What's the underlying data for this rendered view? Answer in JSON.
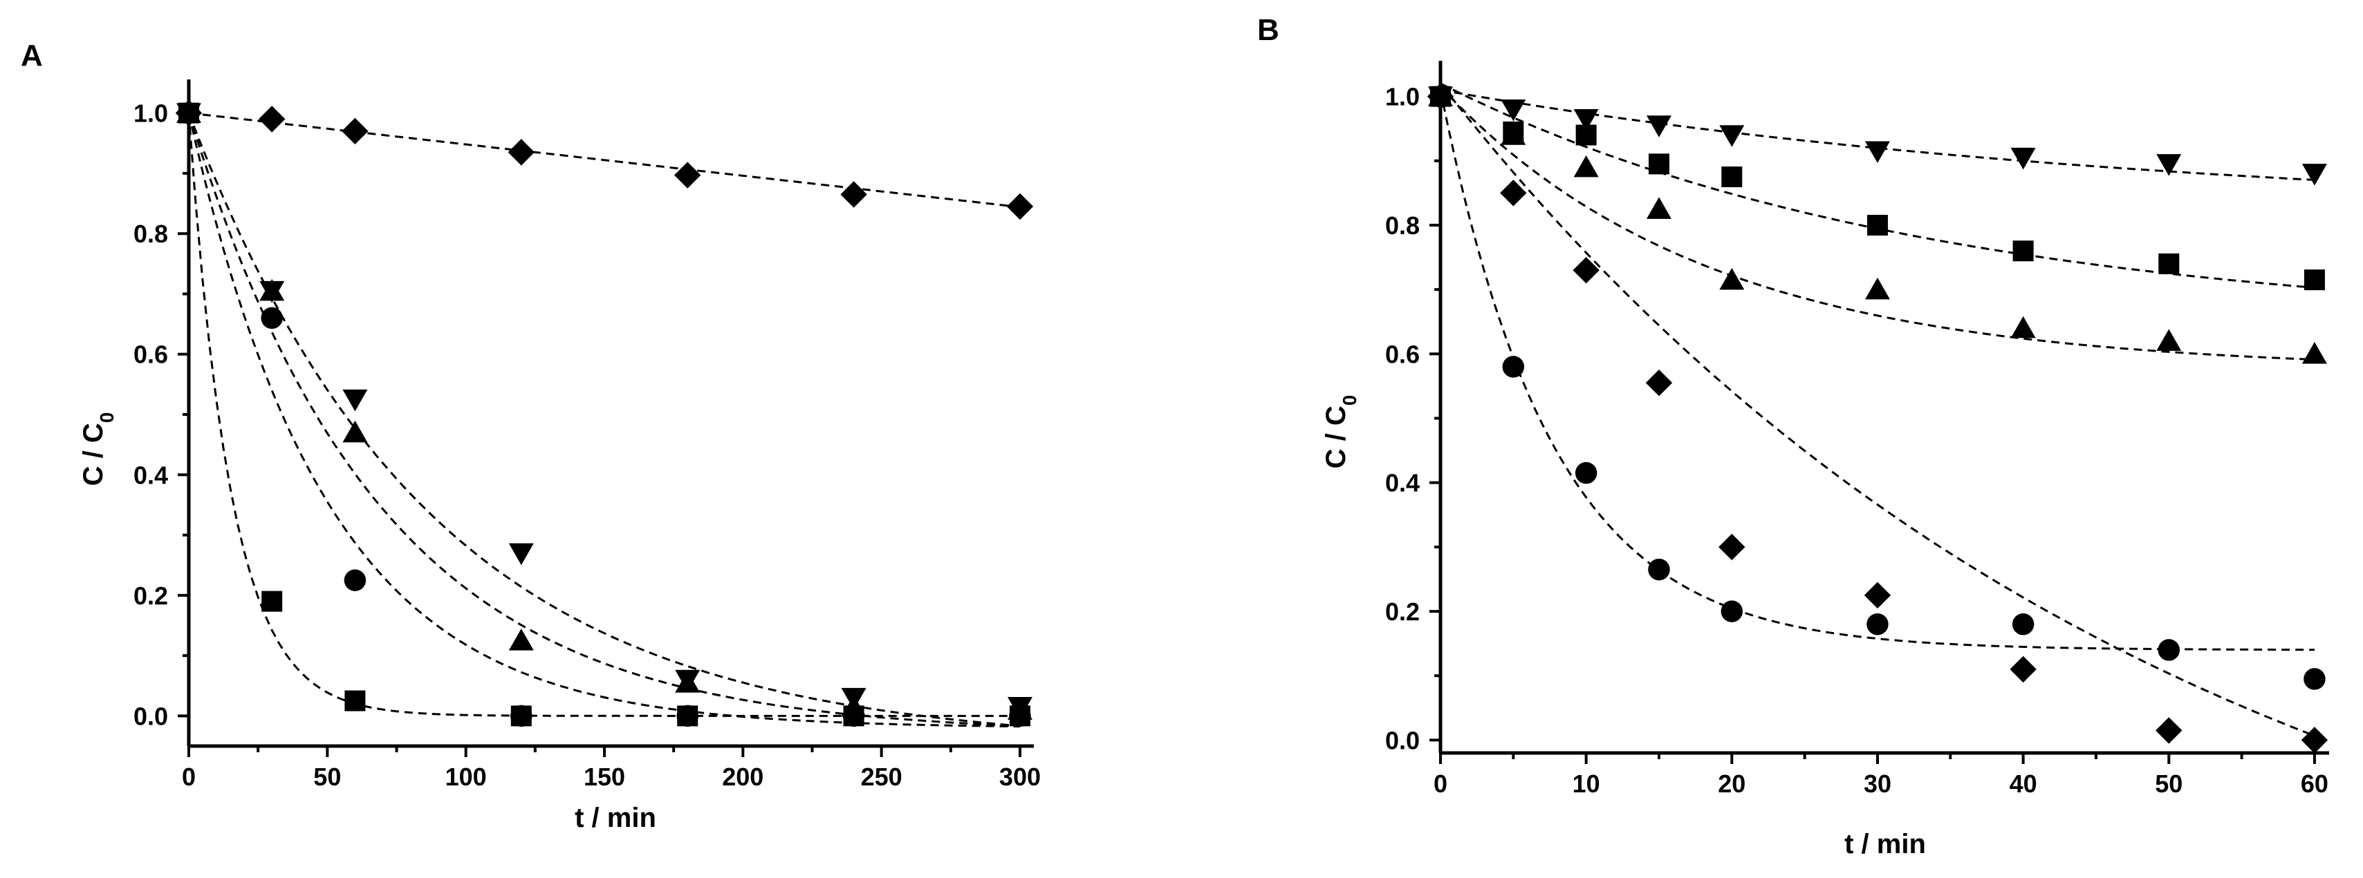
{
  "chart_data": [
    {
      "panel": "A",
      "type": "scatter",
      "xlabel": "t / min",
      "ylabel": "C / C",
      "ylabel_sub": "0",
      "xlim": [
        0,
        305
      ],
      "ylim": [
        -0.05,
        1.05
      ],
      "xticks": [
        0,
        50,
        100,
        150,
        200,
        250,
        300
      ],
      "xtick_labels": [
        "0",
        "50",
        "100",
        "150",
        "200",
        "250",
        "300"
      ],
      "yticks": [
        0.0,
        0.2,
        0.4,
        0.6,
        0.8,
        1.0
      ],
      "ytick_labels": [
        "0.0",
        "0.2",
        "0.4",
        "0.6",
        "0.8",
        "1.0"
      ],
      "series": [
        {
          "marker": "diamond",
          "x": [
            0,
            30,
            60,
            120,
            180,
            240,
            300
          ],
          "y": [
            1.0,
            0.99,
            0.97,
            0.935,
            0.897,
            0.865,
            0.845
          ],
          "fit": {
            "model": "linear",
            "c0": 1.0,
            "slope": -0.00052
          }
        },
        {
          "marker": "triangle-down",
          "x": [
            0,
            30,
            60,
            120,
            180,
            240,
            300
          ],
          "y": [
            1.0,
            0.705,
            0.525,
            0.27,
            0.06,
            0.03,
            0.015
          ],
          "fit": {
            "model": "exp",
            "a": 1.05,
            "k": 0.0115,
            "c": -0.05
          }
        },
        {
          "marker": "triangle-up",
          "x": [
            0,
            30,
            60,
            120,
            180,
            240,
            300
          ],
          "y": [
            1.0,
            0.705,
            0.47,
            0.125,
            0.055,
            0.015,
            0.01
          ],
          "fit": {
            "model": "exp",
            "a": 1.03,
            "k": 0.0145,
            "c": -0.03
          }
        },
        {
          "marker": "circle",
          "x": [
            0,
            30,
            60,
            120,
            180,
            240,
            300
          ],
          "y": [
            1.0,
            0.66,
            0.225,
            0.0,
            0.0,
            0.0,
            0.0
          ],
          "fit": {
            "model": "exp",
            "a": 1.02,
            "k": 0.02,
            "c": -0.02
          }
        },
        {
          "marker": "square",
          "x": [
            0,
            30,
            60,
            120,
            180,
            240,
            300
          ],
          "y": [
            1.0,
            0.19,
            0.025,
            0.0,
            0.0,
            0.0,
            0.0
          ],
          "fit": {
            "model": "exp",
            "a": 1.0,
            "k": 0.065,
            "c": 0.0
          }
        }
      ]
    },
    {
      "panel": "B",
      "type": "scatter",
      "xlabel": "t / min",
      "ylabel": "C / C",
      "ylabel_sub": "0",
      "xlim": [
        0,
        61
      ],
      "ylim": [
        -0.02,
        1.05
      ],
      "xticks": [
        0,
        10,
        20,
        30,
        40,
        50,
        60
      ],
      "xtick_labels": [
        "0",
        "10",
        "20",
        "30",
        "40",
        "50",
        "60"
      ],
      "yticks": [
        0.0,
        0.2,
        0.4,
        0.6,
        0.8,
        1.0
      ],
      "ytick_labels": [
        "0.0",
        "0.2",
        "0.4",
        "0.6",
        "0.8",
        "1.0"
      ],
      "series": [
        {
          "marker": "triangle-down",
          "x": [
            0,
            5,
            10,
            15,
            20,
            30,
            40,
            50,
            60
          ],
          "y": [
            1.0,
            0.98,
            0.965,
            0.955,
            0.94,
            0.915,
            0.905,
            0.895,
            0.88
          ],
          "fit": {
            "model": "exp",
            "a": 0.2,
            "k": 0.02,
            "c": 0.81
          }
        },
        {
          "marker": "square",
          "x": [
            0,
            5,
            10,
            15,
            20,
            30,
            40,
            50,
            60
          ],
          "y": [
            1.0,
            0.945,
            0.94,
            0.895,
            0.875,
            0.8,
            0.76,
            0.74,
            0.715
          ],
          "fit": {
            "model": "exp",
            "a": 0.38,
            "k": 0.03,
            "c": 0.64
          }
        },
        {
          "marker": "triangle-up",
          "x": [
            0,
            5,
            10,
            15,
            20,
            30,
            40,
            50,
            60
          ],
          "y": [
            1.0,
            0.94,
            0.89,
            0.825,
            0.715,
            0.7,
            0.64,
            0.62,
            0.6
          ],
          "fit": {
            "model": "exp",
            "a": 0.44,
            "k": 0.055,
            "c": 0.575
          }
        },
        {
          "marker": "diamond",
          "x": [
            0,
            5,
            10,
            15,
            20,
            30,
            40,
            50,
            60
          ],
          "y": [
            1.0,
            0.85,
            0.73,
            0.555,
            0.3,
            0.225,
            0.11,
            0.015,
            0.0
          ],
          "fit": {
            "model": "exp",
            "a": 1.45,
            "k": 0.02,
            "c": -0.43
          }
        },
        {
          "marker": "circle",
          "x": [
            0,
            5,
            10,
            15,
            20,
            30,
            40,
            50,
            60
          ],
          "y": [
            1.0,
            0.58,
            0.415,
            0.265,
            0.2,
            0.18,
            0.18,
            0.14,
            0.095
          ],
          "fit": {
            "model": "exp",
            "a": 0.87,
            "k": 0.13,
            "c": 0.14
          }
        }
      ]
    }
  ]
}
